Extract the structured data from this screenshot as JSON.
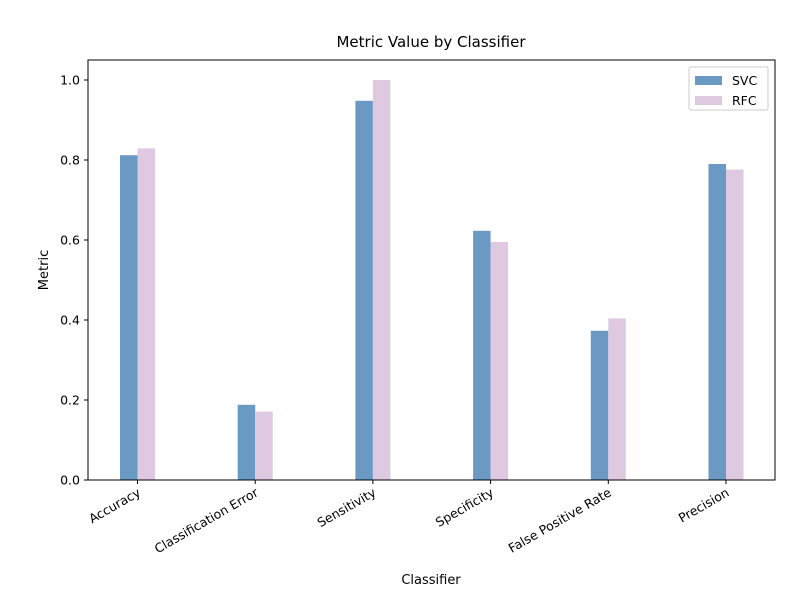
{
  "chart_data": {
    "type": "bar",
    "title": "Metric Value by Classifier",
    "xlabel": "Classifier",
    "ylabel": "Metric",
    "categories": [
      "Accuracy",
      "Classification Error",
      "Sensitivity",
      "Specificity",
      "False Positive Rate",
      "Precision"
    ],
    "series": [
      {
        "name": "SVC",
        "color": "#6a9ac4",
        "values": [
          0.812,
          0.188,
          0.948,
          0.623,
          0.373,
          0.79
        ]
      },
      {
        "name": "RFC",
        "color": "#dfc9e1",
        "values": [
          0.829,
          0.171,
          1.0,
          0.595,
          0.404,
          0.776
        ]
      }
    ],
    "ylim": [
      0,
      1.05
    ],
    "yticks": [
      "0.0",
      "0.2",
      "0.4",
      "0.6",
      "0.8",
      "1.0"
    ],
    "grid": false,
    "legend_position": "top-right",
    "xtick_rotation": "30 degrees"
  }
}
